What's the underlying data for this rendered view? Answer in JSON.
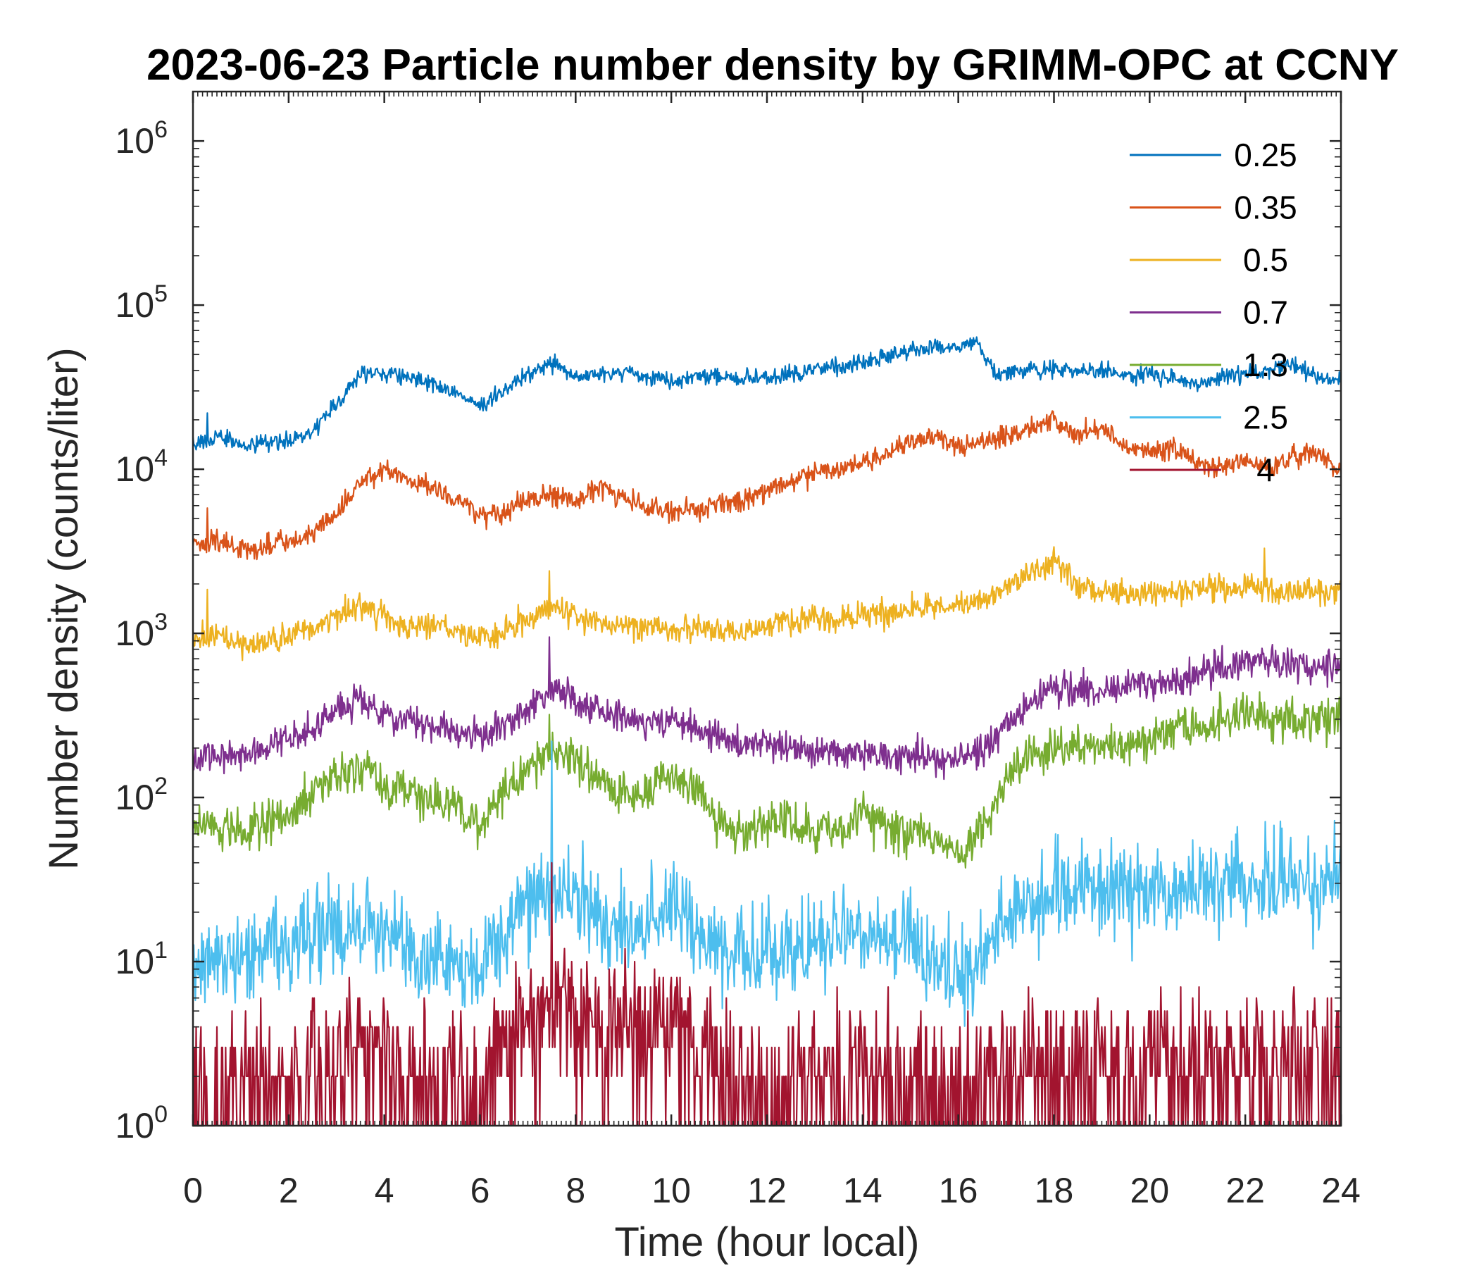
{
  "chart_data": {
    "type": "line",
    "title": "2023-06-23 Particle number density by GRIMM-OPC at CCNY",
    "xlabel": "Time (hour local)",
    "ylabel": "Number density (counts/liter)",
    "xlim": [
      0,
      24
    ],
    "ylim": [
      1,
      2000000
    ],
    "yscale": "log",
    "xticks": [
      0,
      2,
      4,
      6,
      8,
      10,
      12,
      14,
      16,
      18,
      20,
      22,
      24
    ],
    "yticks": [
      {
        "value": 1,
        "base": "10",
        "exp": "0"
      },
      {
        "value": 10,
        "base": "10",
        "exp": "1"
      },
      {
        "value": 100,
        "base": "10",
        "exp": "2"
      },
      {
        "value": 1000,
        "base": "10",
        "exp": "3"
      },
      {
        "value": 10000,
        "base": "10",
        "exp": "4"
      },
      {
        "value": 100000,
        "base": "10",
        "exp": "5"
      },
      {
        "value": 1000000,
        "base": "10",
        "exp": "6"
      }
    ],
    "grid": false,
    "legend_position": "top-right",
    "series": [
      {
        "name": "0.25",
        "color": "#0072BD",
        "noise": 0.035,
        "x": [
          0,
          0.5,
          1,
          1.5,
          2,
          2.5,
          3,
          3.5,
          4,
          4.5,
          5,
          5.5,
          6,
          6.5,
          7,
          7.5,
          8,
          8.5,
          9,
          9.5,
          10,
          10.5,
          11,
          11.5,
          12,
          12.5,
          13,
          13.5,
          14,
          14.5,
          15,
          15.5,
          16,
          16.4,
          16.8,
          17,
          17.5,
          18,
          18.5,
          19,
          19.5,
          20,
          20.5,
          21,
          21.5,
          22,
          22.5,
          23,
          23.5,
          24
        ],
        "y": [
          14000,
          16000,
          14000,
          14500,
          15000,
          17000,
          25000,
          38000,
          40000,
          36000,
          34000,
          28000,
          24000,
          30000,
          38000,
          45000,
          36000,
          38000,
          40000,
          36000,
          34000,
          36000,
          37000,
          35000,
          36000,
          38000,
          41000,
          42000,
          46000,
          49000,
          54000,
          56000,
          55000,
          58000,
          38000,
          38000,
          40000,
          41000,
          40000,
          40000,
          38000,
          38000,
          36000,
          33000,
          36000,
          38000,
          40000,
          44000,
          36000,
          34000
        ]
      },
      {
        "name": "0.35",
        "color": "#D95319",
        "noise": 0.045,
        "x": [
          0,
          0.5,
          1,
          1.5,
          2,
          2.5,
          3,
          3.5,
          4,
          4.5,
          5,
          5.5,
          6,
          6.5,
          7,
          7.5,
          8,
          8.5,
          9,
          9.5,
          10,
          10.5,
          11,
          11.5,
          12,
          12.5,
          13,
          13.5,
          14,
          14.5,
          15,
          15.5,
          16,
          16.5,
          17,
          17.5,
          18,
          18.5,
          19,
          19.5,
          20,
          20.5,
          21,
          21.5,
          22,
          22.5,
          23,
          23.5,
          24
        ],
        "y": [
          3500,
          3600,
          3300,
          3300,
          3600,
          4200,
          5500,
          8000,
          10000,
          8500,
          7800,
          6500,
          5200,
          5500,
          6500,
          7200,
          6500,
          7500,
          6800,
          6000,
          5500,
          5800,
          6200,
          6500,
          7500,
          8500,
          9500,
          10000,
          11000,
          12500,
          14500,
          16000,
          14000,
          14500,
          15500,
          18000,
          20000,
          16000,
          18000,
          14000,
          12500,
          13500,
          11000,
          10500,
          11500,
          10000,
          12000,
          12500,
          9500
        ]
      },
      {
        "name": "0.5",
        "color": "#EDB120",
        "noise": 0.055,
        "x": [
          0,
          0.5,
          1,
          1.5,
          2,
          2.5,
          3,
          3.5,
          4,
          4.5,
          5,
          5.5,
          6,
          6.5,
          7,
          7.5,
          8,
          8.5,
          9,
          9.5,
          10,
          10.5,
          11,
          11.5,
          12,
          12.5,
          13,
          13.5,
          14,
          14.5,
          15,
          15.5,
          16,
          16.5,
          17,
          17.5,
          18,
          18.5,
          19,
          19.5,
          20,
          20.5,
          21,
          21.5,
          22,
          22.5,
          23,
          23.5,
          24
        ],
        "y": [
          900,
          1000,
          850,
          900,
          950,
          1050,
          1300,
          1500,
          1250,
          1100,
          1100,
          1050,
          950,
          1050,
          1250,
          1450,
          1250,
          1200,
          1100,
          1100,
          1050,
          1050,
          1050,
          1000,
          1150,
          1200,
          1250,
          1200,
          1300,
          1300,
          1400,
          1500,
          1450,
          1550,
          1900,
          2300,
          2800,
          2000,
          1800,
          1750,
          1750,
          1800,
          1850,
          1850,
          1900,
          1850,
          1800,
          1800,
          1750
        ]
      },
      {
        "name": "0.7",
        "color": "#7E2F8E",
        "noise": 0.07,
        "x": [
          0,
          0.5,
          1,
          1.5,
          2,
          2.5,
          3,
          3.5,
          4,
          4.5,
          5,
          5.5,
          6,
          6.5,
          7,
          7.5,
          8,
          8.5,
          9,
          9.5,
          10,
          10.5,
          11,
          11.5,
          12,
          12.5,
          13,
          13.5,
          14,
          14.5,
          15,
          15.5,
          16,
          16.5,
          17,
          17.5,
          18,
          18.5,
          19,
          19.5,
          20,
          20.5,
          21,
          21.5,
          22,
          22.5,
          23,
          23.5,
          24
        ],
        "y": [
          180,
          185,
          180,
          200,
          220,
          260,
          350,
          400,
          320,
          290,
          280,
          250,
          230,
          280,
          360,
          450,
          400,
          330,
          300,
          280,
          300,
          260,
          230,
          210,
          210,
          200,
          190,
          180,
          190,
          180,
          180,
          170,
          170,
          200,
          280,
          380,
          480,
          450,
          460,
          470,
          500,
          520,
          560,
          620,
          680,
          650,
          640,
          620,
          600
        ]
      },
      {
        "name": "1.3",
        "color": "#77AC30",
        "noise": 0.09,
        "x": [
          0,
          0.5,
          1,
          1.5,
          2,
          2.5,
          3,
          3.5,
          4,
          4.5,
          5,
          5.5,
          6,
          6.5,
          7,
          7.5,
          8,
          8.5,
          9,
          9.5,
          10,
          10.5,
          11,
          11.5,
          12,
          12.5,
          13,
          13.5,
          14,
          14.5,
          15,
          15.5,
          16,
          16.5,
          17,
          17.5,
          18,
          18.5,
          19,
          19.5,
          20,
          20.5,
          21,
          21.5,
          22,
          22.5,
          23,
          23.5,
          24
        ],
        "y": [
          70,
          65,
          60,
          70,
          80,
          100,
          140,
          150,
          120,
          110,
          95,
          90,
          65,
          110,
          150,
          190,
          170,
          130,
          100,
          110,
          140,
          110,
          70,
          60,
          70,
          70,
          65,
          60,
          80,
          65,
          60,
          55,
          45,
          60,
          130,
          180,
          200,
          200,
          210,
          200,
          230,
          260,
          260,
          300,
          320,
          300,
          290,
          300,
          310
        ]
      },
      {
        "name": "2.5",
        "color": "#4DBEEE",
        "noise": 0.2,
        "x": [
          0,
          0.5,
          1,
          1.5,
          2,
          2.5,
          3,
          3.5,
          4,
          4.5,
          5,
          5.5,
          6,
          6.5,
          7,
          7.5,
          8,
          8.5,
          9,
          9.5,
          10,
          10.5,
          11,
          11.5,
          12,
          12.5,
          13,
          13.5,
          14,
          14.5,
          15,
          15.5,
          16,
          16.5,
          17,
          17.5,
          18,
          18.5,
          19,
          19.5,
          20,
          20.5,
          21,
          21.5,
          22,
          22.5,
          23,
          23.5,
          24
        ],
        "y": [
          10,
          11,
          10,
          12,
          13,
          14,
          16,
          18,
          14,
          12,
          11,
          10,
          9,
          15,
          22,
          28,
          25,
          20,
          16,
          17,
          21,
          18,
          12,
          10,
          11,
          12,
          13,
          14,
          15,
          13,
          12,
          10,
          8,
          11,
          20,
          24,
          26,
          27,
          28,
          27,
          28,
          29,
          30,
          30,
          31,
          30,
          31,
          32,
          33
        ]
      },
      {
        "name": "4",
        "color": "#A2142F",
        "noise": 0,
        "x": [
          0,
          0.5,
          1,
          1.5,
          2,
          2.5,
          3,
          3.5,
          4,
          4.5,
          5,
          5.5,
          6,
          6.5,
          7,
          7.5,
          8,
          8.5,
          9,
          9.5,
          10,
          10.5,
          11,
          11.5,
          12,
          12.5,
          13,
          13.5,
          14,
          14.5,
          15,
          15.5,
          16,
          16.5,
          17,
          17.5,
          18,
          18.5,
          19,
          19.5,
          20,
          20.5,
          21,
          21.5,
          22,
          22.5,
          23,
          23.5,
          24
        ],
        "y": [
          1.5,
          1.6,
          1.7,
          1.9,
          2.1,
          2.4,
          2.7,
          2.8,
          2.4,
          2.1,
          1.9,
          1.8,
          1.7,
          3.2,
          5,
          6,
          5,
          4.5,
          4,
          4.2,
          4.8,
          4,
          2.2,
          1.8,
          1.8,
          2,
          2.1,
          2,
          2.3,
          2.1,
          2,
          1.8,
          1.6,
          1.8,
          2.3,
          2.5,
          2.6,
          2.6,
          2.5,
          2.4,
          2.4,
          2.5,
          2.5,
          2.6,
          2.6,
          2.5,
          2.5,
          2.6,
          2.5
        ]
      }
    ],
    "annotations": [
      {
        "series": "0.7",
        "x": 7.45,
        "y": 950
      },
      {
        "series": "1.3",
        "x": 7.45,
        "y": 320
      },
      {
        "series": "2.5",
        "x": 7.5,
        "y": 220
      },
      {
        "series": "4",
        "x": 7.5,
        "y": 40
      },
      {
        "series": "0.5",
        "x": 7.45,
        "y": 2400
      },
      {
        "series": "0.5",
        "x": 22.4,
        "y": 3300
      },
      {
        "series": "0.25",
        "x": 0.3,
        "y": 22000
      },
      {
        "series": "0.35",
        "x": 0.3,
        "y": 5800
      },
      {
        "series": "0.5",
        "x": 0.3,
        "y": 1850
      }
    ]
  }
}
